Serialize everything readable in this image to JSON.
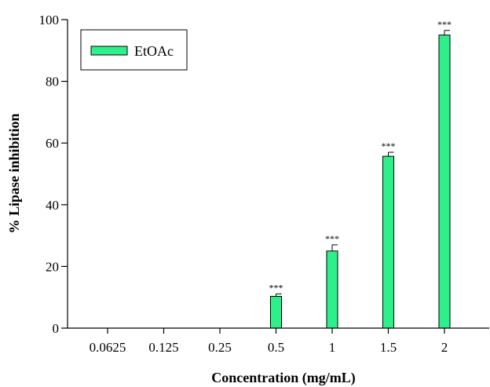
{
  "chart_data": {
    "type": "bar",
    "title": "",
    "xlabel": "Concentration (mg/mL)",
    "ylabel": "% Lipase inhibition",
    "categories": [
      "0.0625",
      "0.125",
      "0.25",
      "0.5",
      "1",
      "1.5",
      "2"
    ],
    "series": [
      {
        "name": "EtOAc",
        "values": [
          0,
          0,
          0,
          10.3,
          25,
          55.7,
          95
        ],
        "errors": [
          0,
          0,
          0,
          0.8,
          2,
          1.3,
          1.5
        ],
        "significance": [
          "",
          "",
          "",
          "***",
          "***",
          "***",
          "***"
        ]
      }
    ],
    "ylim": [
      0,
      100
    ],
    "yticks": [
      0,
      20,
      40,
      60,
      80,
      100
    ],
    "grid": false,
    "legend_position": "top-left",
    "colors": {
      "bar_fill": "#2ef08a",
      "bar_stroke": "#000000",
      "axis": "#000000"
    }
  }
}
